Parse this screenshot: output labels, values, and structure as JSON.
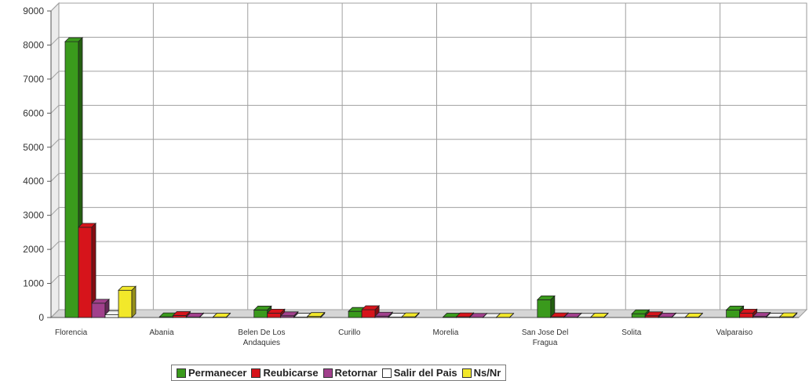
{
  "chart_data": {
    "type": "bar",
    "title": "",
    "xlabel": "",
    "ylabel": "",
    "ylim": [
      0,
      9000
    ],
    "yticks": [
      "0",
      "1000",
      "2000",
      "3000",
      "4000",
      "5000",
      "6000",
      "7000",
      "8000",
      "9000"
    ],
    "grid": true,
    "style": "3d-clustered",
    "legend_position": "bottom",
    "categories": [
      [
        "Florencia"
      ],
      [
        "Abania"
      ],
      [
        "Belen De Los",
        "Andaquies"
      ],
      [
        "Curillo"
      ],
      [
        "Morelia"
      ],
      [
        "San Jose Del",
        "Fragua"
      ],
      [
        "Solita"
      ],
      [
        "Valparaiso"
      ]
    ],
    "series": [
      {
        "name": "Permanecer",
        "color": "#3a9a1c",
        "values": [
          8100,
          20,
          220,
          180,
          10,
          520,
          110,
          220
        ]
      },
      {
        "name": "Reubicarse",
        "color": "#d6141b",
        "values": [
          2650,
          60,
          130,
          230,
          20,
          20,
          50,
          130
        ]
      },
      {
        "name": "Retornar",
        "color": "#a1408c",
        "values": [
          420,
          15,
          50,
          40,
          5,
          10,
          15,
          30
        ]
      },
      {
        "name": "Salir del Pais",
        "color": "#ffffff",
        "values": [
          80,
          5,
          10,
          10,
          2,
          5,
          5,
          10
        ]
      },
      {
        "name": "Ns/Nr",
        "color": "#f2e82a",
        "values": [
          800,
          10,
          30,
          20,
          5,
          10,
          10,
          20
        ]
      }
    ]
  }
}
